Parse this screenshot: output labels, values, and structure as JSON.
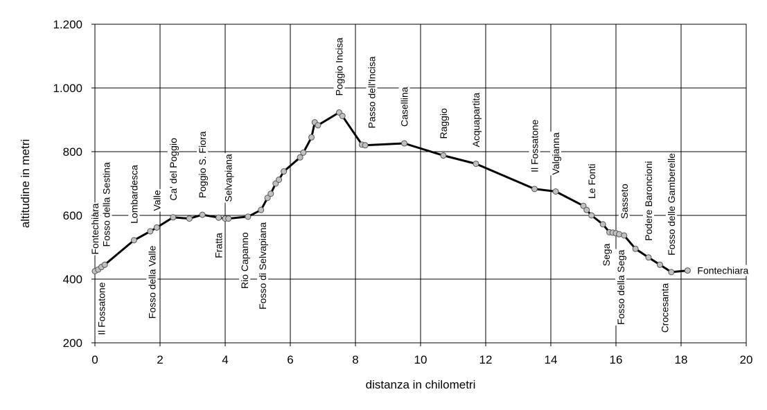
{
  "chart_data": {
    "type": "line",
    "xlabel": "distanza in chilometri",
    "ylabel": "altitudine  in metri",
    "xlim": [
      0,
      20
    ],
    "ylim": [
      200,
      1200
    ],
    "xticks": [
      0,
      2,
      4,
      6,
      8,
      10,
      12,
      14,
      16,
      18,
      20
    ],
    "xtick_labels": [
      "0",
      "2",
      "4",
      "6",
      "8",
      "10",
      "12",
      "14",
      "16",
      "18",
      "20"
    ],
    "yticks": [
      200,
      400,
      600,
      800,
      1000,
      1200
    ],
    "ytick_labels": [
      "200",
      "400",
      "600",
      "800",
      "1.000",
      "1.200"
    ],
    "grid": true,
    "series": [
      {
        "points": [
          [
            0.0,
            425
          ],
          [
            0.1,
            430
          ],
          [
            0.2,
            438
          ],
          [
            0.3,
            445
          ],
          [
            1.2,
            522
          ],
          [
            1.7,
            550
          ],
          [
            1.9,
            562
          ],
          [
            2.4,
            594
          ],
          [
            2.9,
            590
          ],
          [
            3.3,
            602
          ],
          [
            3.8,
            593
          ],
          [
            4.0,
            590
          ],
          [
            4.1,
            590
          ],
          [
            4.7,
            596
          ],
          [
            5.1,
            617
          ],
          [
            5.3,
            655
          ],
          [
            5.4,
            668
          ],
          [
            5.55,
            700
          ],
          [
            5.65,
            712
          ],
          [
            5.8,
            738
          ],
          [
            6.3,
            782
          ],
          [
            6.4,
            797
          ],
          [
            6.65,
            845
          ],
          [
            6.75,
            892
          ],
          [
            6.85,
            883
          ],
          [
            7.5,
            923
          ],
          [
            7.6,
            912
          ],
          [
            8.2,
            822
          ],
          [
            8.3,
            820
          ],
          [
            9.5,
            826
          ],
          [
            10.7,
            788
          ],
          [
            11.7,
            762
          ],
          [
            13.5,
            683
          ],
          [
            14.15,
            675
          ],
          [
            15.0,
            630
          ],
          [
            15.1,
            617
          ],
          [
            15.25,
            600
          ],
          [
            15.6,
            572
          ],
          [
            15.8,
            547
          ],
          [
            15.9,
            546
          ],
          [
            16.0,
            544
          ],
          [
            16.1,
            541
          ],
          [
            16.25,
            537
          ],
          [
            16.6,
            495
          ],
          [
            17.0,
            468
          ],
          [
            17.35,
            445
          ],
          [
            17.7,
            422
          ],
          [
            18.2,
            427
          ]
        ]
      }
    ],
    "labels": [
      {
        "text": "Fontechiara",
        "x": 0.0,
        "side": "above"
      },
      {
        "text": "Il Fossatone",
        "x": 0.2,
        "side": "below"
      },
      {
        "text": "Fosso della Sestina",
        "x": 0.35,
        "side": "above"
      },
      {
        "text": "Lombardesca",
        "x": 1.2,
        "side": "above"
      },
      {
        "text": "Fosso della Valle",
        "x": 1.75,
        "side": "below"
      },
      {
        "text": "Valle",
        "x": 1.9,
        "side": "above"
      },
      {
        "text": "Ca' del Poggio",
        "x": 2.4,
        "side": "above"
      },
      {
        "text": "Poggio S. Fiora",
        "x": 3.3,
        "side": "above"
      },
      {
        "text": "Fratta",
        "x": 3.8,
        "side": "below"
      },
      {
        "text": "Selvapiana",
        "x": 4.1,
        "side": "above"
      },
      {
        "text": "Rio Capanno",
        "x": 4.6,
        "side": "below"
      },
      {
        "text": "Fosso di Selvapiana",
        "x": 5.15,
        "side": "below"
      },
      {
        "text": "Poggio Incisa",
        "x": 7.5,
        "side": "above"
      },
      {
        "text": "Passo dell'Incisa",
        "x": 8.5,
        "side": "above"
      },
      {
        "text": "Casellina",
        "x": 9.5,
        "side": "above"
      },
      {
        "text": "Raggio",
        "x": 10.7,
        "side": "above"
      },
      {
        "text": "Acquapartita",
        "x": 11.7,
        "side": "above"
      },
      {
        "text": "Il Fossatone",
        "x": 13.5,
        "side": "above"
      },
      {
        "text": "Valgianna",
        "x": 14.15,
        "side": "above"
      },
      {
        "text": "Le Fonti",
        "x": 15.25,
        "side": "above"
      },
      {
        "text": "Sega",
        "x": 15.7,
        "side": "below"
      },
      {
        "text": "Sasseto",
        "x": 16.25,
        "side": "above"
      },
      {
        "text": "Fosso della Sega",
        "x": 16.15,
        "side": "below"
      },
      {
        "text": "Podere Baroncioni",
        "x": 17.0,
        "side": "above"
      },
      {
        "text": "Crocesanta",
        "x": 17.5,
        "side": "below"
      },
      {
        "text": "Fosso delle Gamberelle",
        "x": 17.7,
        "side": "above"
      },
      {
        "text": "Fontechiara",
        "x": 18.2,
        "side": "right"
      }
    ]
  }
}
